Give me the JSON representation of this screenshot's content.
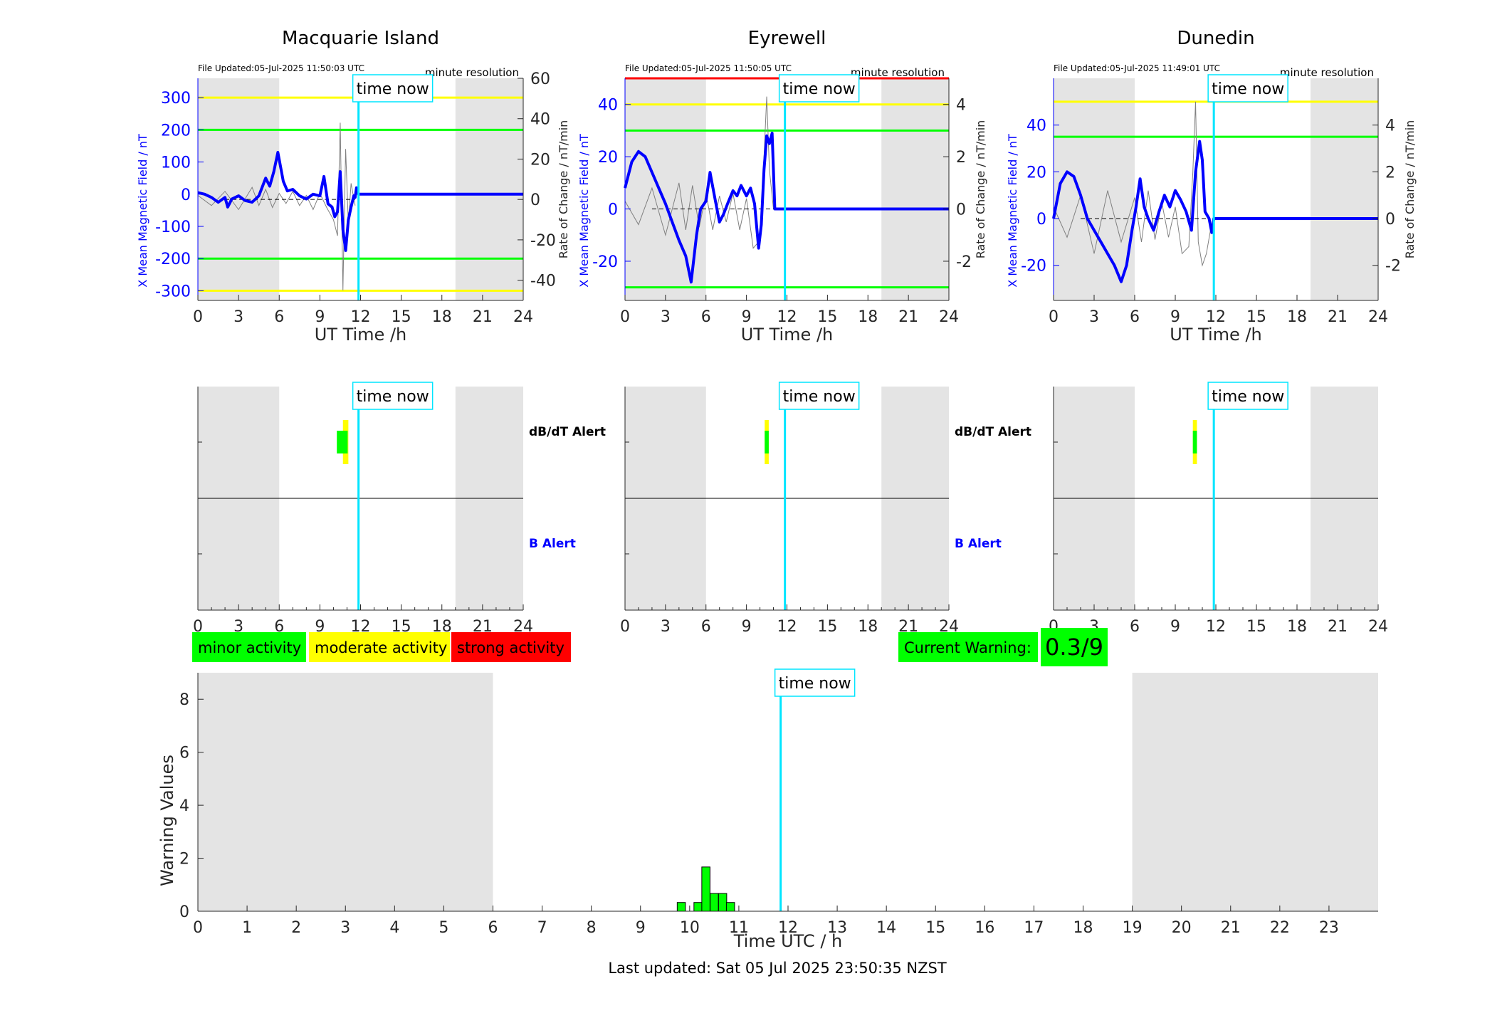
{
  "figure": {
    "time_now_label": "time now",
    "last_updated": "Last updated: Sat 05 Jul 2025 23:50:35 NZST",
    "now_hour": 11.85,
    "night_shading_hours": [
      [
        0,
        6
      ],
      [
        19,
        24
      ]
    ],
    "colors": {
      "field": "#0000ff",
      "rate": "#808080",
      "now": "#00e5ff",
      "night": "#e4e4e4",
      "minor": "#00ff00",
      "moderate": "#ffff00",
      "strong": "#ff0000"
    }
  },
  "stations": [
    {
      "name": "Macquarie Island",
      "file_updated": "File Updated:05-Jul-2025 11:50:03 UTC",
      "resolution": "minute resolution",
      "left_axis_label": "X Mean Magnetic Field / nT",
      "right_axis_label": "Rate of Change / nT/min",
      "x_axis_label": "UT Time /h"
    },
    {
      "name": "Eyrewell",
      "file_updated": "File Updated:05-Jul-2025 11:50:05 UTC",
      "resolution": "minute resolution",
      "left_axis_label": "X Mean Magnetic Field / nT",
      "right_axis_label": "Rate of Change / nT/min",
      "x_axis_label": "UT Time /h"
    },
    {
      "name": "Dunedin",
      "file_updated": "File Updated:05-Jul-2025 11:49:01 UTC",
      "resolution": "minute resolution",
      "left_axis_label": "X Mean Magnetic Field / nT",
      "right_axis_label": "Rate of Change / nT/min",
      "x_axis_label": "UT Time /h"
    }
  ],
  "alerts": {
    "dbdt_label": "dB/dT Alert",
    "b_label": "B Alert"
  },
  "legend": {
    "minor": "minor activity",
    "moderate": "moderate activity",
    "strong": "strong activity",
    "current_warning_label": "Current Warning:",
    "current_warning_value": "0.3/9"
  },
  "chart_data": [
    {
      "type": "line",
      "title": "Macquarie Island",
      "xlabel": "UT Time /h",
      "ylabel": "X Mean Magnetic Field / nT",
      "y2label": "Rate of Change / nT/min",
      "xlim": [
        0,
        24
      ],
      "ylim": [
        -330,
        360
      ],
      "y2lim": [
        -50,
        60
      ],
      "xticks": [
        0,
        3,
        6,
        9,
        12,
        15,
        18,
        21,
        24
      ],
      "yticks": [
        -300,
        -200,
        -100,
        0,
        100,
        200,
        300
      ],
      "y2ticks": [
        -40,
        -20,
        0,
        20,
        40,
        60
      ],
      "threshold_lines": [
        {
          "y": 300,
          "color": "#ffff00"
        },
        {
          "y": -300,
          "color": "#ffff00"
        },
        {
          "y": 200,
          "color": "#00ff00"
        },
        {
          "y": -200,
          "color": "#00ff00"
        }
      ],
      "series": [
        {
          "kind": "field",
          "x": [
            0,
            0.5,
            1,
            1.5,
            2,
            2.2,
            2.5,
            3,
            3.5,
            4,
            4.5,
            5,
            5.3,
            5.6,
            5.9,
            6.1,
            6.3,
            6.6,
            7,
            7.5,
            8,
            8.5,
            9,
            9.3,
            9.6,
            9.9,
            10.1,
            10.3,
            10.5,
            10.7,
            10.9,
            11.1,
            11.3,
            11.5,
            11.6,
            11.7,
            11.85,
            12,
            15,
            18,
            21,
            24
          ],
          "y": [
            5,
            0,
            -10,
            -25,
            -10,
            -40,
            -15,
            -5,
            -20,
            -25,
            -5,
            50,
            25,
            70,
            130,
            85,
            40,
            10,
            15,
            -5,
            -15,
            0,
            -5,
            55,
            -30,
            -40,
            -70,
            -55,
            70,
            -110,
            -175,
            -80,
            -40,
            -5,
            -10,
            20,
            0,
            0,
            0,
            0,
            0,
            0
          ]
        },
        {
          "kind": "rate",
          "x": [
            0,
            1,
            2,
            3,
            4,
            4.5,
            5,
            5.5,
            6,
            6.5,
            7,
            7.5,
            8,
            8.5,
            9,
            9.5,
            10,
            10.3,
            10.5,
            10.7,
            10.9,
            11.1,
            11.3,
            11.6
          ],
          "y": [
            2,
            -3,
            4,
            -5,
            6,
            -3,
            5,
            -4,
            3,
            -2,
            4,
            -3,
            2,
            -5,
            3,
            -4,
            -10,
            -18,
            38,
            -45,
            25,
            -12,
            8,
            -3
          ]
        }
      ]
    },
    {
      "type": "line",
      "title": "Eyrewell",
      "xlabel": "UT Time /h",
      "ylabel": "X Mean Magnetic Field / nT",
      "y2label": "Rate of Change / nT/min",
      "xlim": [
        0,
        24
      ],
      "ylim": [
        -35,
        50
      ],
      "y2lim": [
        -3.5,
        5
      ],
      "xticks": [
        0,
        3,
        6,
        9,
        12,
        15,
        18,
        21,
        24
      ],
      "yticks": [
        -20,
        0,
        20,
        40
      ],
      "y2ticks": [
        -2,
        0,
        2,
        4
      ],
      "threshold_lines": [
        {
          "y": 50,
          "color": "#ff0000"
        },
        {
          "y": 40,
          "color": "#ffff00"
        },
        {
          "y": 30,
          "color": "#00ff00"
        },
        {
          "y": -30,
          "color": "#00ff00"
        }
      ],
      "series": [
        {
          "kind": "field",
          "x": [
            0,
            0.5,
            1,
            1.5,
            2,
            2.5,
            3,
            3.5,
            4,
            4.5,
            4.9,
            5.3,
            5.6,
            6,
            6.3,
            6.7,
            7,
            7.3,
            7.6,
            8,
            8.3,
            8.6,
            9,
            9.3,
            9.6,
            9.9,
            10.1,
            10.3,
            10.5,
            10.7,
            10.9,
            11.1,
            11.85,
            12,
            15,
            18,
            21,
            24
          ],
          "y": [
            8,
            18,
            22,
            20,
            14,
            8,
            2,
            -5,
            -12,
            -18,
            -28,
            -10,
            0,
            3,
            14,
            3,
            -5,
            -2,
            2,
            7,
            5,
            9,
            5,
            8,
            2,
            -15,
            -6,
            15,
            28,
            25,
            29,
            0,
            0,
            0,
            0,
            0,
            0,
            0
          ]
        },
        {
          "kind": "rate",
          "x": [
            0,
            1,
            2,
            3,
            4,
            4.5,
            5,
            5.5,
            6,
            6.5,
            7,
            7.5,
            8,
            8.5,
            9,
            9.5,
            10,
            10.3,
            10.5,
            10.7,
            11
          ],
          "y": [
            0.3,
            -0.6,
            0.8,
            -1,
            1,
            -0.8,
            0.9,
            -0.7,
            0.6,
            -0.8,
            0.5,
            -0.5,
            0.6,
            -0.8,
            0.4,
            -1.5,
            -1.2,
            2,
            4.3,
            1.5,
            0
          ]
        }
      ]
    },
    {
      "type": "line",
      "title": "Dunedin",
      "xlabel": "UT Time /h",
      "ylabel": "X Mean Magnetic Field / nT",
      "y2label": "Rate of Change / nT/min",
      "xlim": [
        0,
        24
      ],
      "ylim": [
        -35,
        60
      ],
      "y2lim": [
        -3.5,
        6
      ],
      "xticks": [
        0,
        3,
        6,
        9,
        12,
        15,
        18,
        21,
        24
      ],
      "yticks": [
        -20,
        0,
        20,
        40
      ],
      "y2ticks": [
        -2,
        0,
        2,
        4
      ],
      "threshold_lines": [
        {
          "y": 50,
          "color": "#ffff00"
        },
        {
          "y": 35,
          "color": "#00ff00"
        }
      ],
      "series": [
        {
          "kind": "field",
          "x": [
            0,
            0.5,
            1,
            1.5,
            2,
            2.5,
            3,
            3.5,
            4,
            4.5,
            5,
            5.4,
            5.8,
            6.1,
            6.4,
            6.7,
            7,
            7.4,
            7.8,
            8.2,
            8.6,
            9,
            9.4,
            9.8,
            10.2,
            10.5,
            10.8,
            11,
            11.2,
            11.5,
            11.7,
            11.85,
            12,
            15,
            18,
            21,
            24
          ],
          "y": [
            0,
            15,
            20,
            18,
            10,
            0,
            -5,
            -10,
            -15,
            -20,
            -27,
            -20,
            -5,
            5,
            17,
            5,
            0,
            -5,
            3,
            10,
            5,
            12,
            8,
            3,
            -5,
            20,
            33,
            25,
            3,
            0,
            -6,
            0,
            0,
            0,
            0,
            0,
            0
          ]
        },
        {
          "kind": "rate",
          "x": [
            0,
            1,
            2,
            3,
            4,
            5,
            6,
            6.5,
            7,
            7.5,
            8,
            8.5,
            9,
            9.5,
            10,
            10.3,
            10.5,
            10.7,
            11,
            11.3,
            11.6
          ],
          "y": [
            0.5,
            -0.8,
            1,
            -1.5,
            1.2,
            -1,
            0.9,
            -1,
            1.2,
            -0.9,
            0.7,
            -0.8,
            0.5,
            -1.5,
            -1.2,
            2,
            5,
            -1,
            -2,
            -1.5,
            -0.5
          ]
        }
      ]
    },
    {
      "type": "bar",
      "title": "",
      "xlabel": "Time UTC / h",
      "ylabel": "Warning Values",
      "xlim": [
        0,
        24
      ],
      "ylim": [
        0,
        9
      ],
      "xticks": [
        0,
        1,
        2,
        3,
        4,
        5,
        6,
        7,
        8,
        9,
        10,
        11,
        12,
        13,
        14,
        15,
        16,
        17,
        18,
        19,
        20,
        21,
        22,
        23
      ],
      "yticks": [
        0,
        2,
        4,
        6,
        8
      ],
      "bin_width_h": 1,
      "bars": [
        {
          "x": 9.83,
          "value": 0.33
        },
        {
          "x": 10.0,
          "value": 0.0
        },
        {
          "x": 10.17,
          "value": 0.33
        },
        {
          "x": 10.33,
          "value": 1.67
        },
        {
          "x": 10.5,
          "value": 0.67
        },
        {
          "x": 10.67,
          "value": 0.67
        },
        {
          "x": 10.83,
          "value": 0.33
        }
      ]
    }
  ],
  "alert_data": [
    {
      "station": "Macquarie Island",
      "dbdt": [
        {
          "start": 10.7,
          "end": 11.1,
          "level": "moderate",
          "band": "outer"
        },
        {
          "start": 10.25,
          "end": 11.05,
          "level": "minor",
          "band": "inner"
        }
      ]
    },
    {
      "station": "Eyrewell",
      "dbdt": [
        {
          "start": 10.35,
          "end": 10.65,
          "level": "moderate",
          "band": "outer"
        },
        {
          "start": 10.35,
          "end": 10.65,
          "level": "minor",
          "band": "inner"
        }
      ]
    },
    {
      "station": "Dunedin",
      "dbdt": [
        {
          "start": 10.3,
          "end": 10.6,
          "level": "moderate",
          "band": "outer"
        },
        {
          "start": 10.3,
          "end": 10.6,
          "level": "minor",
          "band": "inner"
        }
      ]
    }
  ]
}
